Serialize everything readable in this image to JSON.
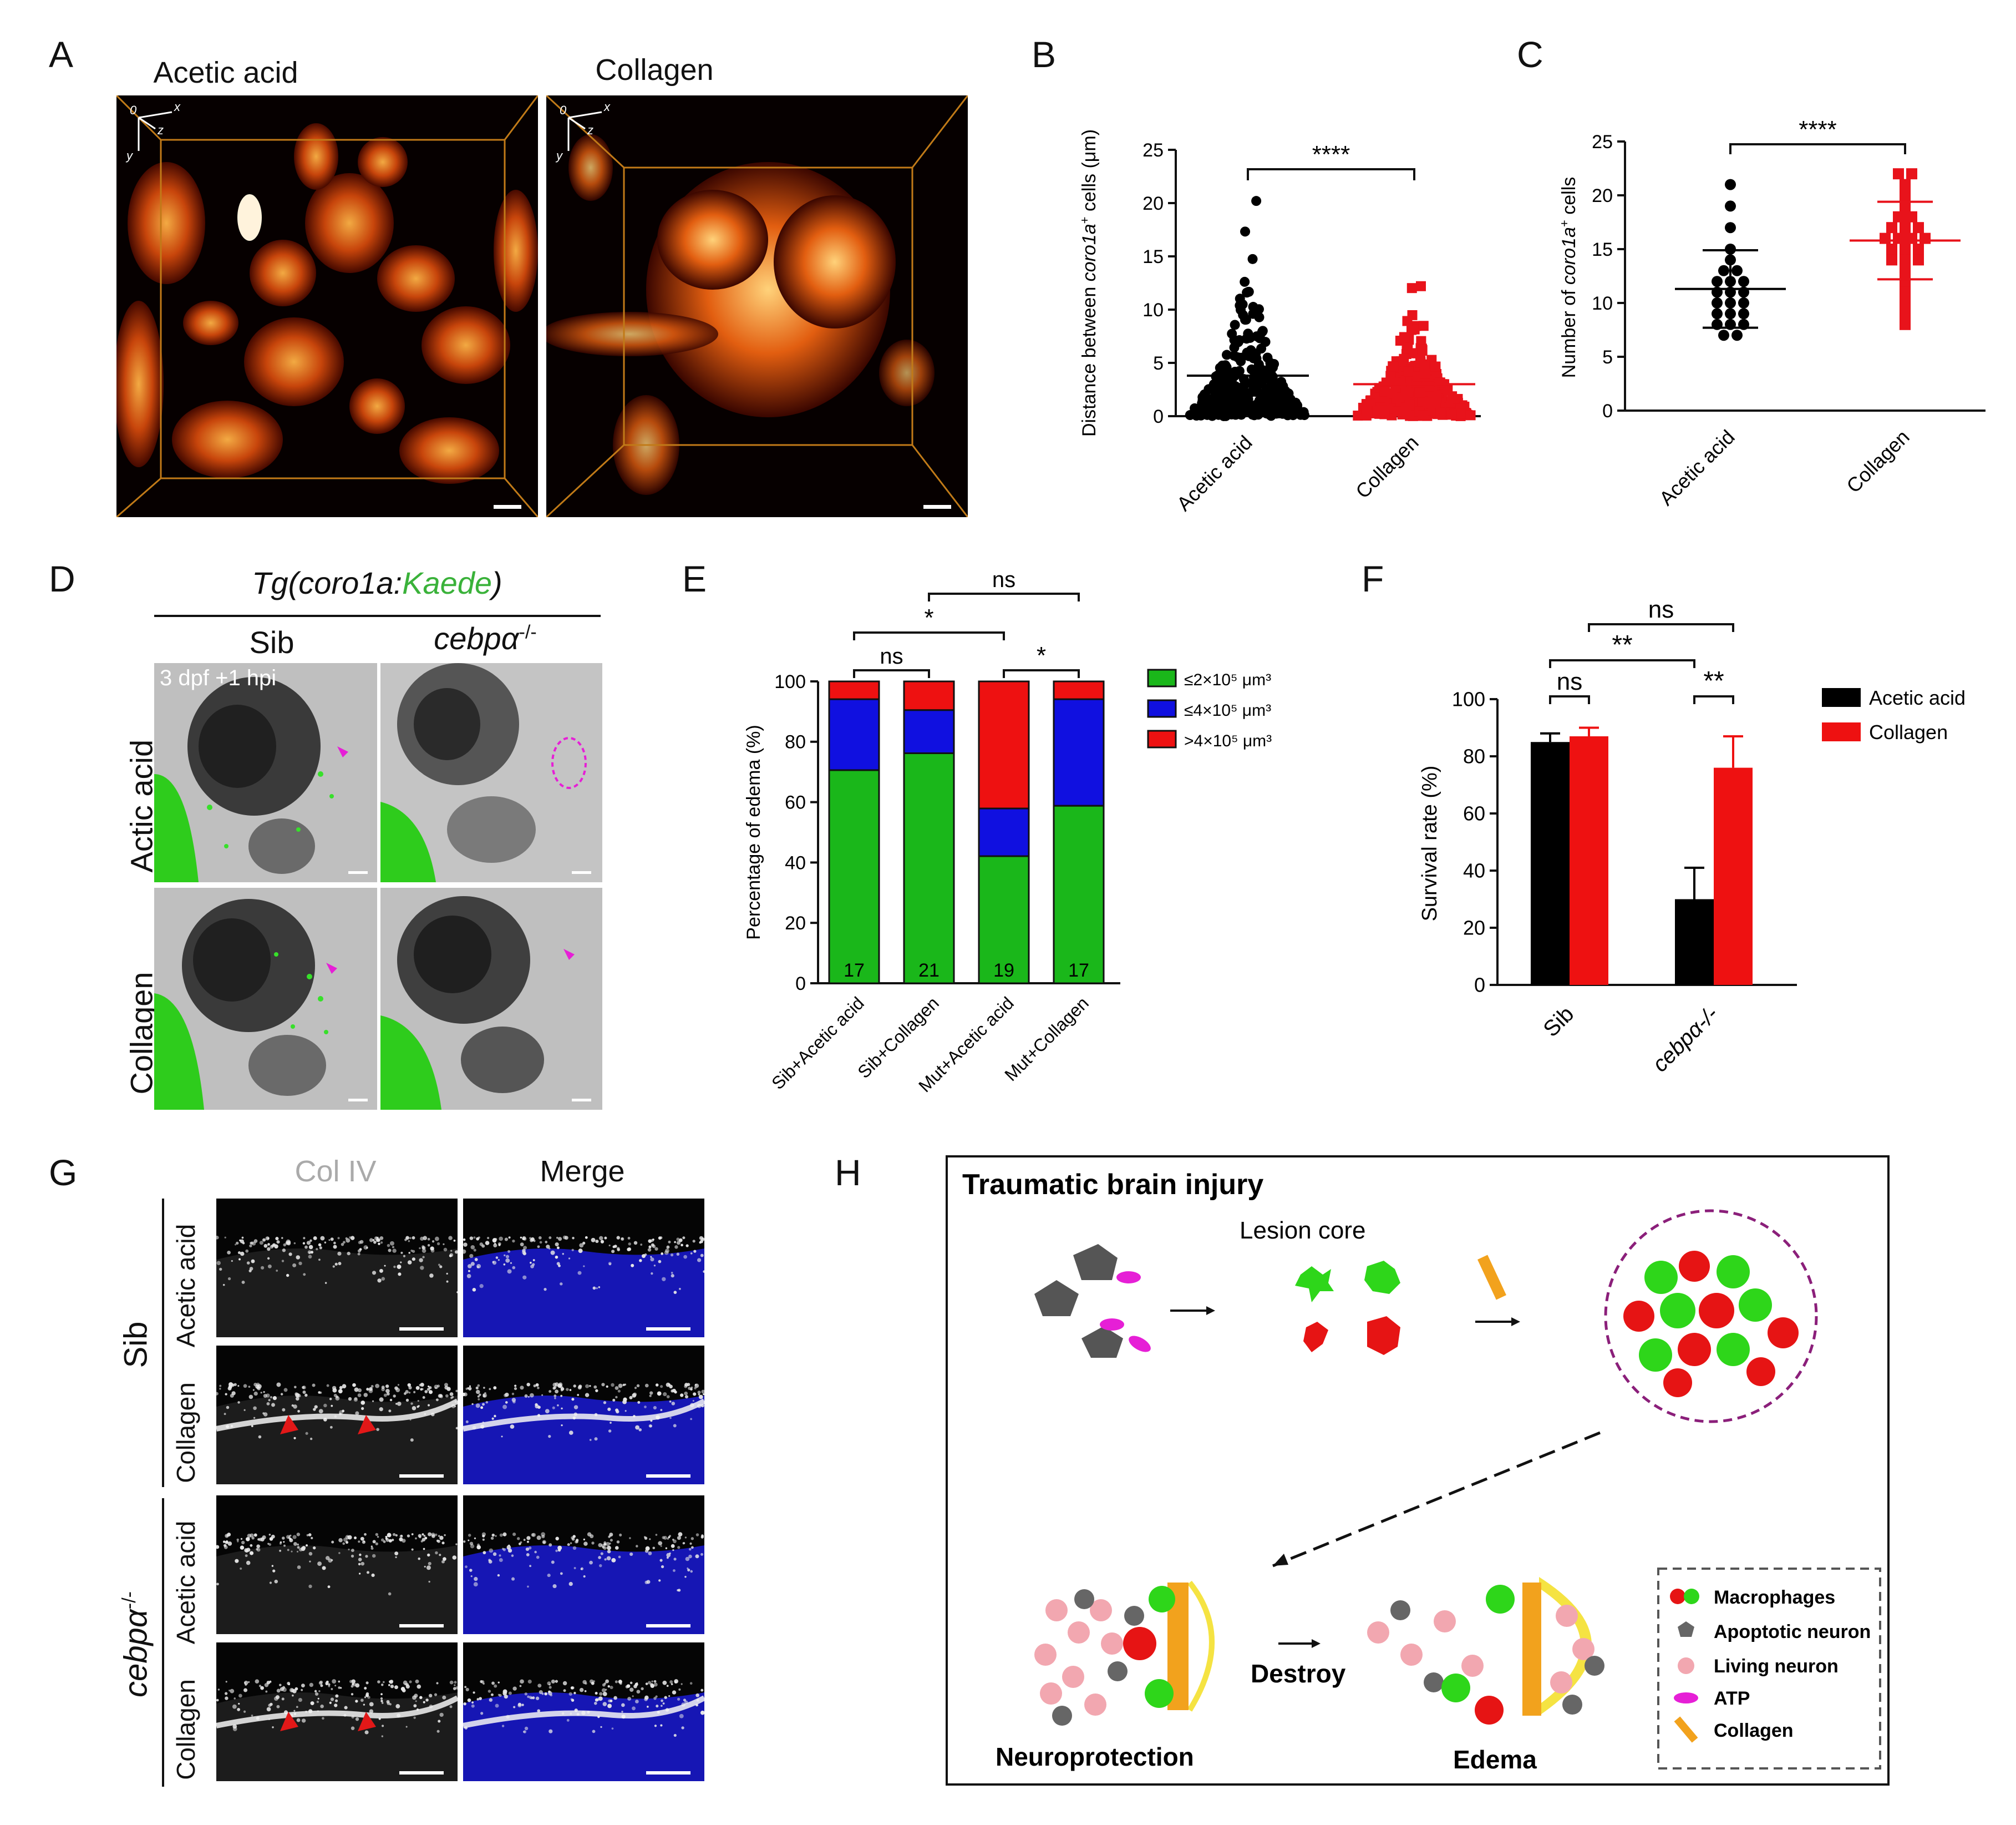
{
  "panels": {
    "A": {
      "label": "A",
      "images": [
        {
          "title": "Acetic acid",
          "axes": [
            "0",
            "x",
            "z",
            "y"
          ]
        },
        {
          "title": "Collagen",
          "axes": [
            "0",
            "x",
            "z",
            "y"
          ]
        }
      ]
    },
    "B": {
      "label": "B",
      "significance": "****"
    },
    "C": {
      "label": "C",
      "significance": "****"
    },
    "D": {
      "label": "D",
      "header_prefix": "Tg(coro1a:",
      "header_green": "Kaede",
      "header_suffix": ")",
      "col_labels": [
        "Sib",
        "cebpα"
      ],
      "col_sup": "-/-",
      "row_labels": [
        "Actic acid",
        "Collagen"
      ],
      "time_label": "3 dpf +1 hpi"
    },
    "E": {
      "label": "E",
      "significance": [
        "ns",
        "*",
        "ns",
        "*"
      ]
    },
    "F": {
      "label": "F",
      "significance": [
        "ns",
        "**",
        "ns",
        "**"
      ]
    },
    "G": {
      "label": "G",
      "col_labels": [
        "Col IV",
        "Merge"
      ],
      "group_labels": [
        "Sib",
        "cebpα"
      ],
      "group_sup": "-/-",
      "row_labels": [
        "Acetic acid",
        "Collagen",
        "Acetic acid",
        "Collagen"
      ]
    },
    "H": {
      "label": "H",
      "title": "Traumatic brain injury",
      "lesion_core": "Lesion core",
      "destroy": "Destroy",
      "neuroprotection": "Neuroprotection",
      "edema": "Edema",
      "legend": [
        "Macrophages",
        "Apoptotic neuron",
        "Living neuron",
        "ATP",
        "Collagen"
      ]
    }
  },
  "chart_data": [
    {
      "panel": "B",
      "type": "scatter",
      "ylabel": "Distance between coro1a+ cells (μm)",
      "ylabel_parts": [
        "Distance between ",
        "coro1a",
        "+",
        " cells (μm)"
      ],
      "categories": [
        "Acetic acid",
        "Collagen"
      ],
      "ylim": [
        0,
        25
      ],
      "yticks": [
        "0",
        "5",
        "10",
        "15",
        "20",
        "25"
      ],
      "mean": [
        3.8,
        3.0
      ],
      "max": [
        20.2,
        12.2
      ],
      "colors": [
        "#000000",
        "#e8131b"
      ]
    },
    {
      "panel": "C",
      "type": "scatter",
      "ylabel": "Number of coro1a+ cells",
      "ylabel_parts": [
        "Number of ",
        "coro1a",
        "+",
        " cells"
      ],
      "categories": [
        "Acetic acid",
        "Collagen"
      ],
      "ylim": [
        0,
        25
      ],
      "yticks": [
        "0",
        "5",
        "10",
        "15",
        "20",
        "25"
      ],
      "series": [
        {
          "values": [
            21,
            19,
            17,
            15,
            14,
            13,
            13,
            12,
            12,
            12,
            11,
            11,
            11,
            10,
            10,
            10,
            9,
            9,
            9,
            8,
            8,
            8,
            7,
            7
          ]
        },
        {
          "values": [
            22,
            22,
            21,
            20,
            19,
            18,
            18,
            17,
            17,
            17,
            16,
            16,
            16,
            16,
            15,
            15,
            15,
            14,
            14,
            14,
            13,
            12,
            11,
            10,
            9,
            8
          ]
        }
      ],
      "mean": [
        11.3,
        15.8
      ],
      "sd": [
        3.6,
        3.6
      ],
      "colors": [
        "#000000",
        "#e8131b"
      ]
    },
    {
      "panel": "E",
      "type": "bar",
      "stacked": true,
      "ylabel": "Percentage of edema (%)",
      "categories": [
        "Sib+Acetic acid",
        "Sib+Collagen",
        "Mut+Acetic acid",
        "Mut+Collagen"
      ],
      "n": [
        "17",
        "21",
        "19",
        "17"
      ],
      "ylim": [
        0,
        100
      ],
      "yticks": [
        "0",
        "20",
        "40",
        "60",
        "80",
        "100"
      ],
      "series": [
        {
          "name": "≤2×10⁵ μm³",
          "color": "#1ab71a",
          "values": [
            70.6,
            76.2,
            42.1,
            58.8
          ]
        },
        {
          "name": "≤4×10⁵ μm³",
          "color": "#1010e0",
          "values": [
            23.5,
            14.3,
            15.8,
            35.3
          ]
        },
        {
          "name": ">4×10⁵ μm³",
          "color": "#ee1111",
          "values": [
            5.9,
            9.5,
            42.1,
            5.9
          ]
        }
      ],
      "legend_position": "right"
    },
    {
      "panel": "F",
      "type": "bar",
      "ylabel": "Survival rate (%)",
      "categories": [
        "Sib",
        "cebpα-/-"
      ],
      "ylim": [
        0,
        100
      ],
      "yticks": [
        "0",
        "20",
        "40",
        "60",
        "80",
        "100"
      ],
      "series": [
        {
          "name": "Acetic acid",
          "color": "#000000",
          "values": [
            85,
            30
          ],
          "err": [
            3,
            11
          ]
        },
        {
          "name": "Collagen",
          "color": "#ee1111",
          "values": [
            87,
            76
          ],
          "err": [
            3,
            11
          ]
        }
      ],
      "legend_position": "right"
    }
  ]
}
